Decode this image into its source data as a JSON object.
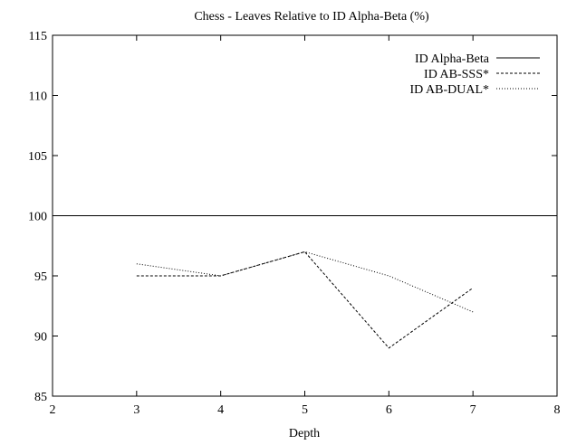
{
  "chart_data": {
    "type": "line",
    "title": "Chess - Leaves Relative to ID Alpha-Beta (%)",
    "xlabel": "Depth",
    "ylabel": "",
    "xlim": [
      2,
      8
    ],
    "ylim": [
      85,
      115
    ],
    "xticks": [
      2,
      3,
      4,
      5,
      6,
      7,
      8
    ],
    "yticks": [
      85,
      90,
      95,
      100,
      105,
      110,
      115
    ],
    "grid": false,
    "legend_position": "top-right",
    "series": [
      {
        "name": "ID Alpha-Beta",
        "style": "solid",
        "x": [
          2,
          8
        ],
        "y": [
          100,
          100
        ]
      },
      {
        "name": "ID AB-SSS*",
        "style": "dashed",
        "x": [
          3,
          4,
          5,
          6,
          7
        ],
        "y": [
          95,
          95,
          97,
          89,
          94
        ]
      },
      {
        "name": "ID AB-DUAL*",
        "style": "dotted",
        "x": [
          3,
          4,
          5,
          6,
          7
        ],
        "y": [
          96,
          95,
          97,
          95,
          92
        ]
      }
    ]
  }
}
